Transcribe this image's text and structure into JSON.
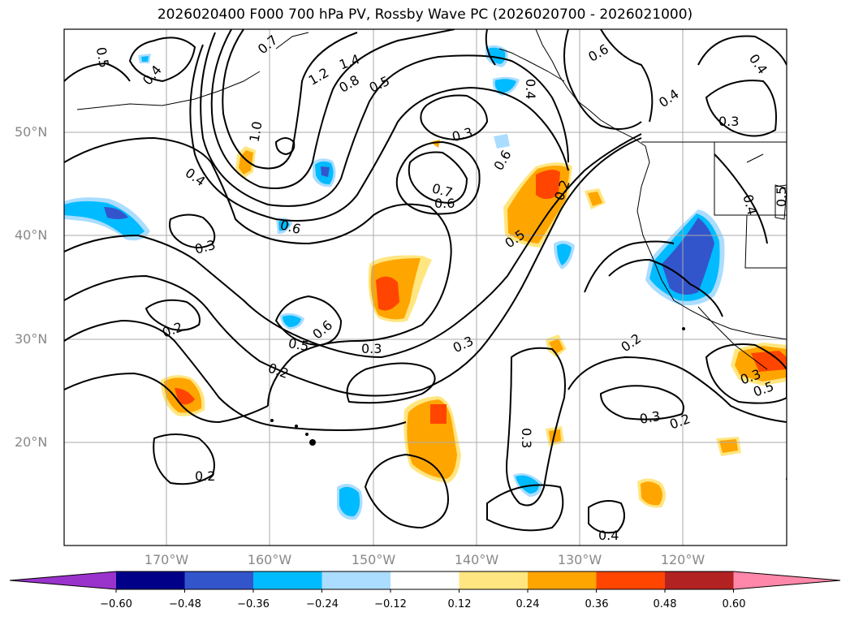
{
  "title": "2026020400 F000 700 hPa PV, Rossby Wave PC (2026020700 - 2026021000)",
  "lat_labels": [
    "50°N",
    "40°N",
    "30°N",
    "20°N"
  ],
  "lon_labels": [
    "170°W",
    "160°W",
    "150°W",
    "140°W",
    "130°W",
    "120°W"
  ],
  "colorbar": {
    "ticks": [
      "−0.60",
      "−0.48",
      "−0.36",
      "−0.24",
      "−0.12",
      "0.12",
      "0.24",
      "0.36",
      "0.48",
      "0.60"
    ],
    "colors": [
      "#9933cc",
      "#000088",
      "#3355cc",
      "#00bbff",
      "#aaddff",
      "#ffffff",
      "#ffe680",
      "#ffa500",
      "#ff4500",
      "#b22222",
      "#ff88aa"
    ]
  },
  "contour_labels": [
    "0.5",
    "0.4",
    "0.7",
    "1.2",
    "1.4",
    "0.8",
    "0.5",
    "0.4",
    "0.6",
    "0.4",
    "0.3",
    "0.4",
    "0.3",
    "0.6",
    "1.0",
    "0.4",
    "0.3",
    "0.6",
    "0.7",
    "0.6",
    "0.2",
    "0.5",
    "0.4",
    "0.5",
    "0.6",
    "0.5",
    "0.3",
    "0.3",
    "0.2",
    "0.2",
    "0.2",
    "0.3",
    "0.3",
    "0.2",
    "0.2",
    "0.4",
    "0.3"
  ]
}
